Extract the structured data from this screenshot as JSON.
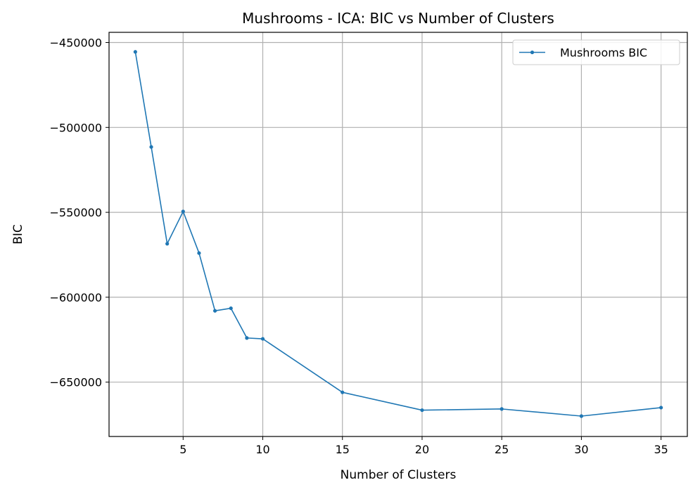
{
  "chart_data": {
    "type": "line",
    "title": "Mushrooms - ICA: BIC vs Number of Clusters",
    "xlabel": "Number of Clusters",
    "ylabel": "BIC",
    "xlim": [
      0.35,
      36.65
    ],
    "ylim": [
      -682000,
      -444000
    ],
    "xticks": [
      5,
      10,
      15,
      20,
      25,
      30,
      35
    ],
    "yticks": [
      -450000,
      -500000,
      -550000,
      -600000,
      -650000
    ],
    "xtick_labels": [
      "5",
      "10",
      "15",
      "20",
      "25",
      "30",
      "35"
    ],
    "ytick_labels": [
      "−450000",
      "−500000",
      "−550000",
      "−600000",
      "−650000"
    ],
    "grid": true,
    "legend_position": "top-right",
    "series": [
      {
        "name": "Mushrooms BIC",
        "color": "#1f77b4",
        "marker": "dot",
        "x": [
          2,
          3,
          4,
          5,
          6,
          7,
          8,
          9,
          10,
          15,
          20,
          25,
          30,
          35
        ],
        "y": [
          -455500,
          -511500,
          -568500,
          -549500,
          -574000,
          -608000,
          -606500,
          -624000,
          -624500,
          -656000,
          -666500,
          -665800,
          -670000,
          -665000
        ]
      }
    ]
  }
}
